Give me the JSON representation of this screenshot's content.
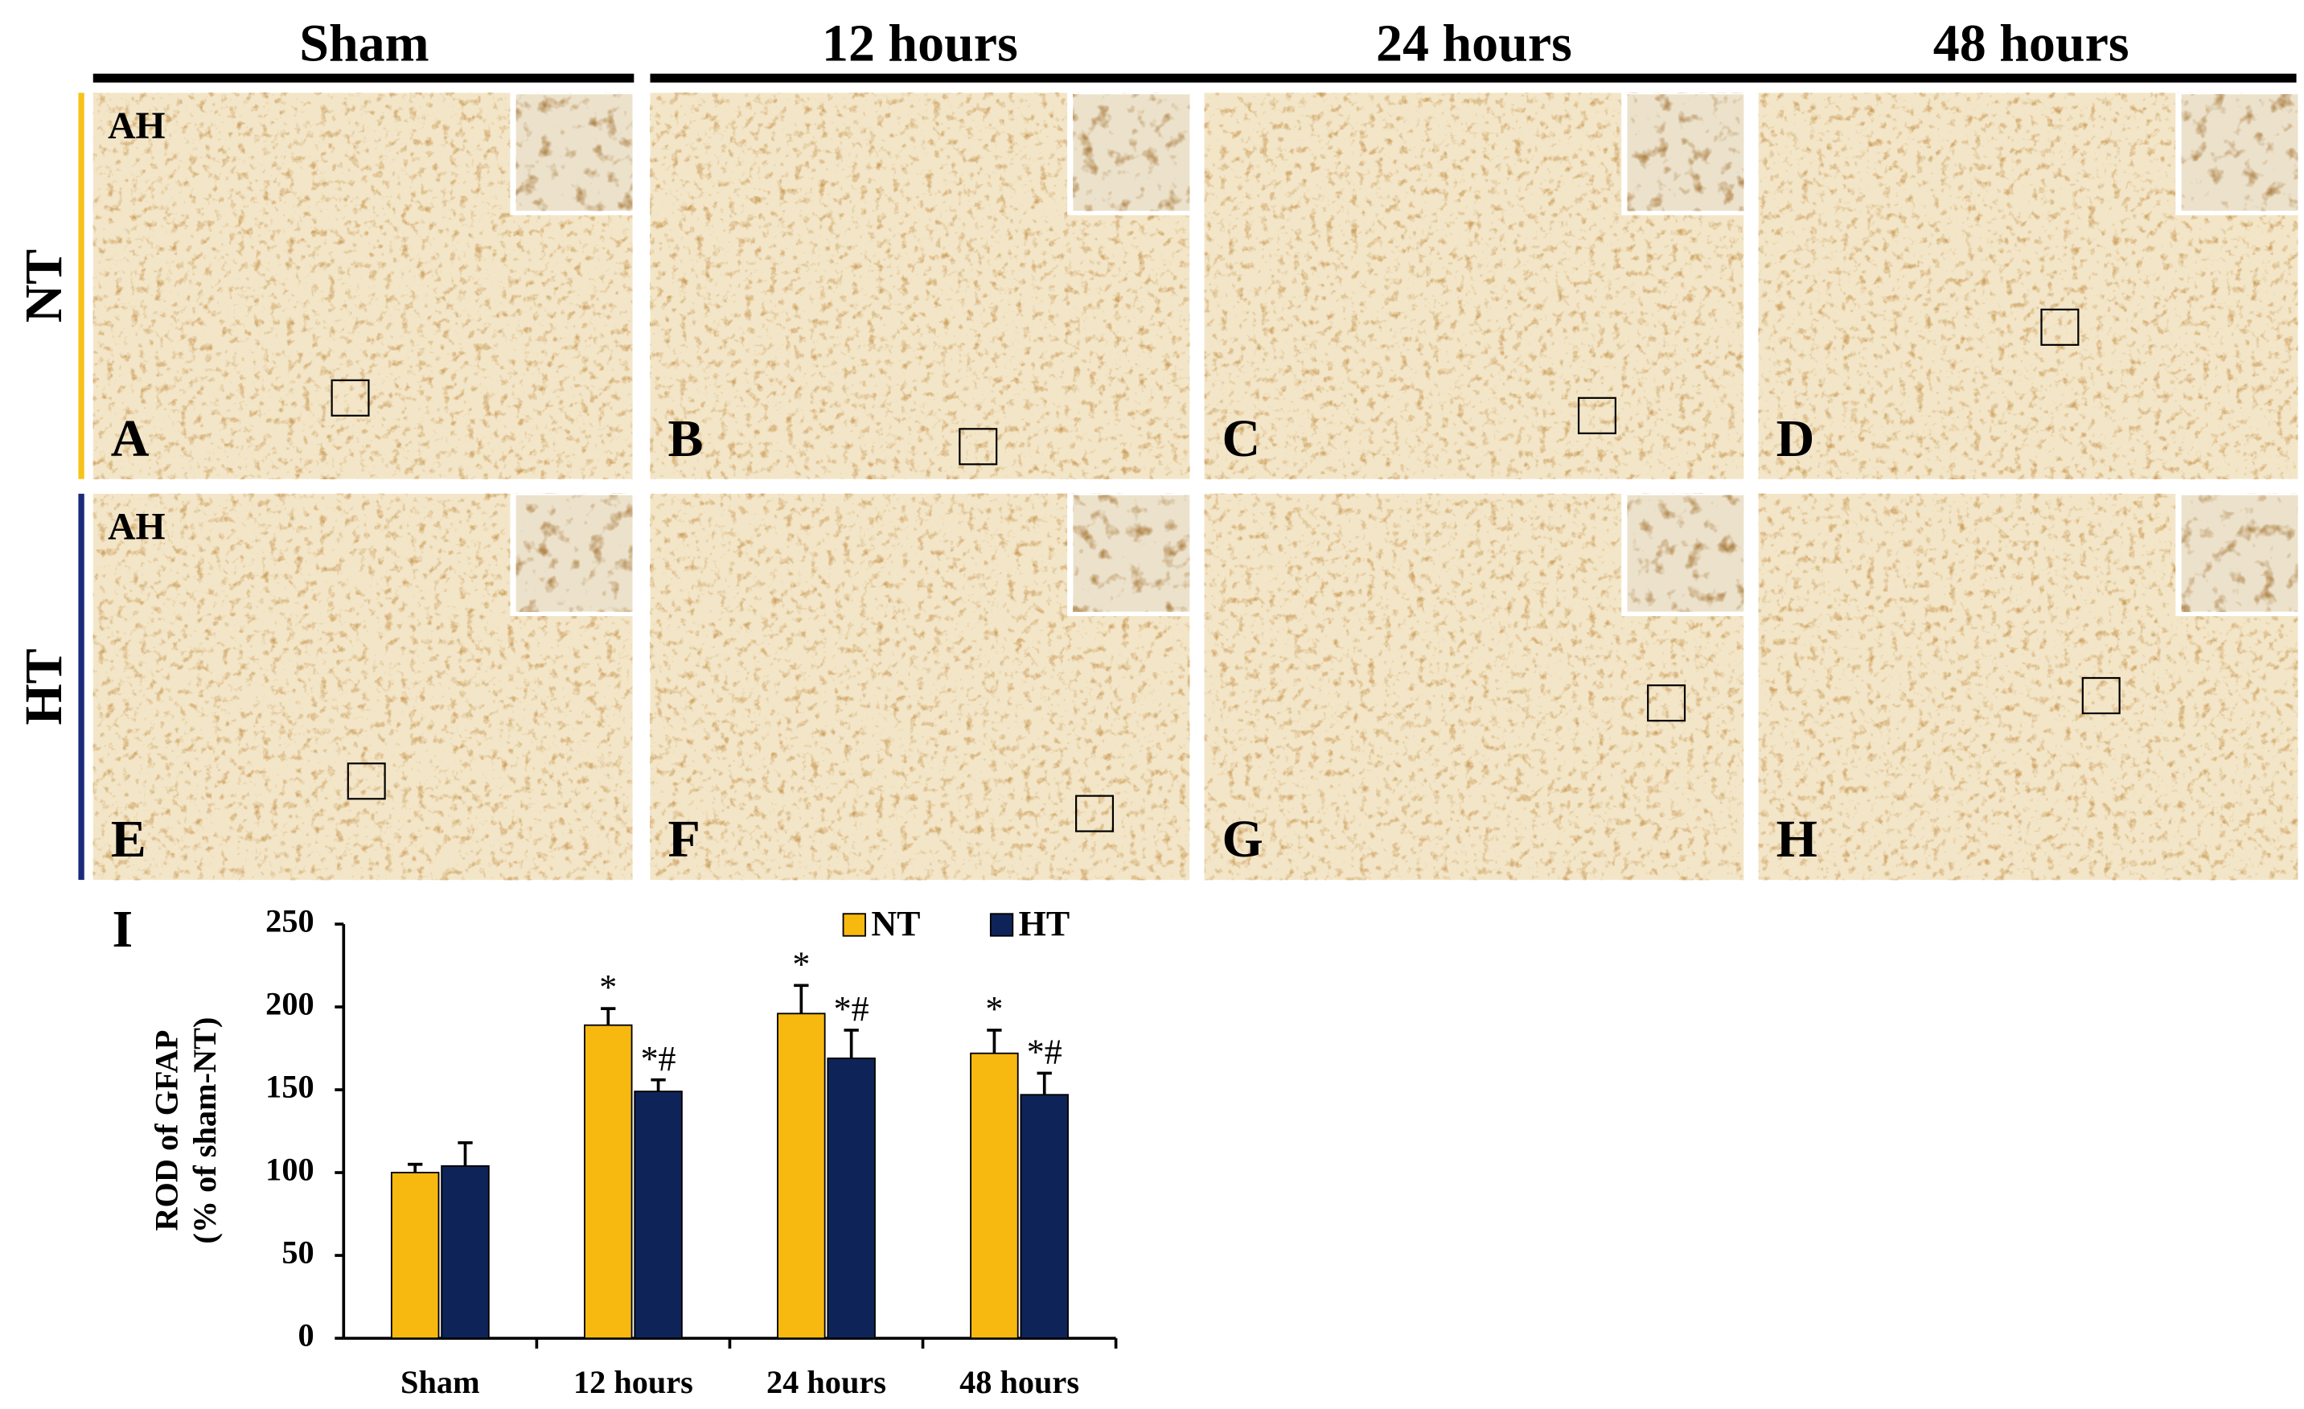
{
  "columns": [
    "Sham",
    "12 hours",
    "24 hours",
    "48 hours"
  ],
  "rows": [
    "NT",
    "HT"
  ],
  "panels": [
    "A",
    "B",
    "C",
    "D",
    "E",
    "F",
    "G",
    "H"
  ],
  "region_labels": [
    "AH",
    "AH"
  ],
  "chart_label": "I",
  "chart_data": {
    "type": "bar",
    "y_label": [
      "ROD of GFAP",
      "(% of sham-NT)"
    ],
    "categories": [
      "Sham",
      "12 hours",
      "24 hours",
      "48 hours"
    ],
    "series": [
      {
        "name": "NT",
        "color": "#f7b80f",
        "values": [
          100,
          189,
          196,
          172
        ],
        "errors": [
          5,
          10,
          17,
          14
        ],
        "markers": [
          null,
          "*",
          "*",
          "*"
        ]
      },
      {
        "name": "HT",
        "color": "#0e2458",
        "values": [
          104,
          149,
          169,
          147
        ],
        "errors": [
          14,
          7,
          17,
          13
        ],
        "markers": [
          null,
          "*#",
          "*#",
          "*#"
        ]
      }
    ],
    "ylim": [
      0,
      250
    ],
    "yticks": [
      0,
      50,
      100,
      150,
      200,
      250
    ],
    "legend": "top"
  }
}
